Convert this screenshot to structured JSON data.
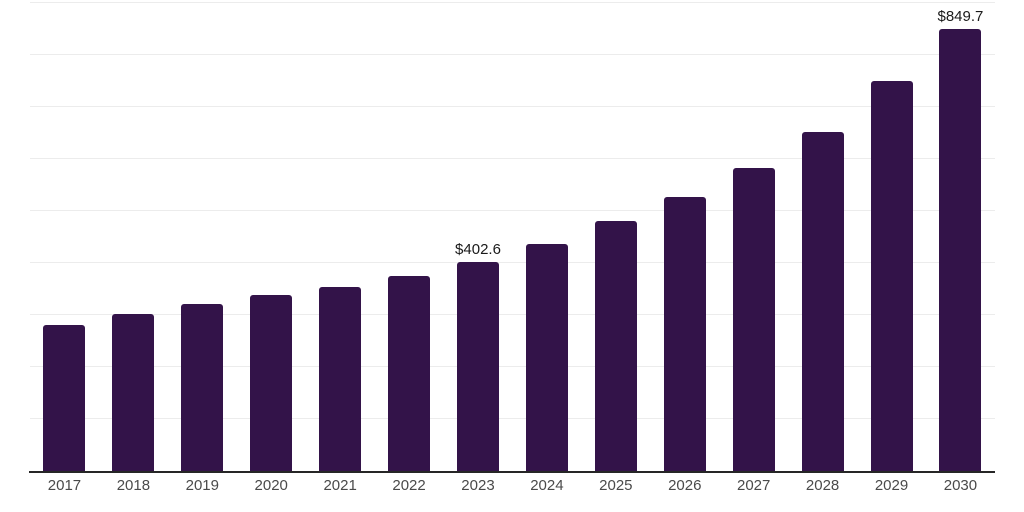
{
  "chart_data": {
    "type": "bar",
    "title": "",
    "xlabel": "",
    "ylabel": "",
    "categories": [
      "2017",
      "2018",
      "2019",
      "2020",
      "2021",
      "2022",
      "2023",
      "2024",
      "2025",
      "2026",
      "2027",
      "2028",
      "2029",
      "2030"
    ],
    "values": [
      281,
      301,
      322,
      338,
      354,
      375,
      402.6,
      436,
      481,
      527,
      582,
      652,
      750,
      849.7
    ],
    "data_labels": [
      "",
      "",
      "",
      "",
      "",
      "",
      "$402.6",
      "",
      "",
      "",
      "",
      "",
      "",
      "$849.7"
    ],
    "ylim": [
      0,
      900
    ],
    "gridline_step": 100,
    "grid": true,
    "legend": false,
    "y_tick_labels_visible": false,
    "colors": {
      "bar": "#331349",
      "value_label": "#1a1a1a",
      "tick_label": "#4a4a4a",
      "gridline": "#ececec",
      "axis": "#262626",
      "background": "#ffffff"
    }
  }
}
